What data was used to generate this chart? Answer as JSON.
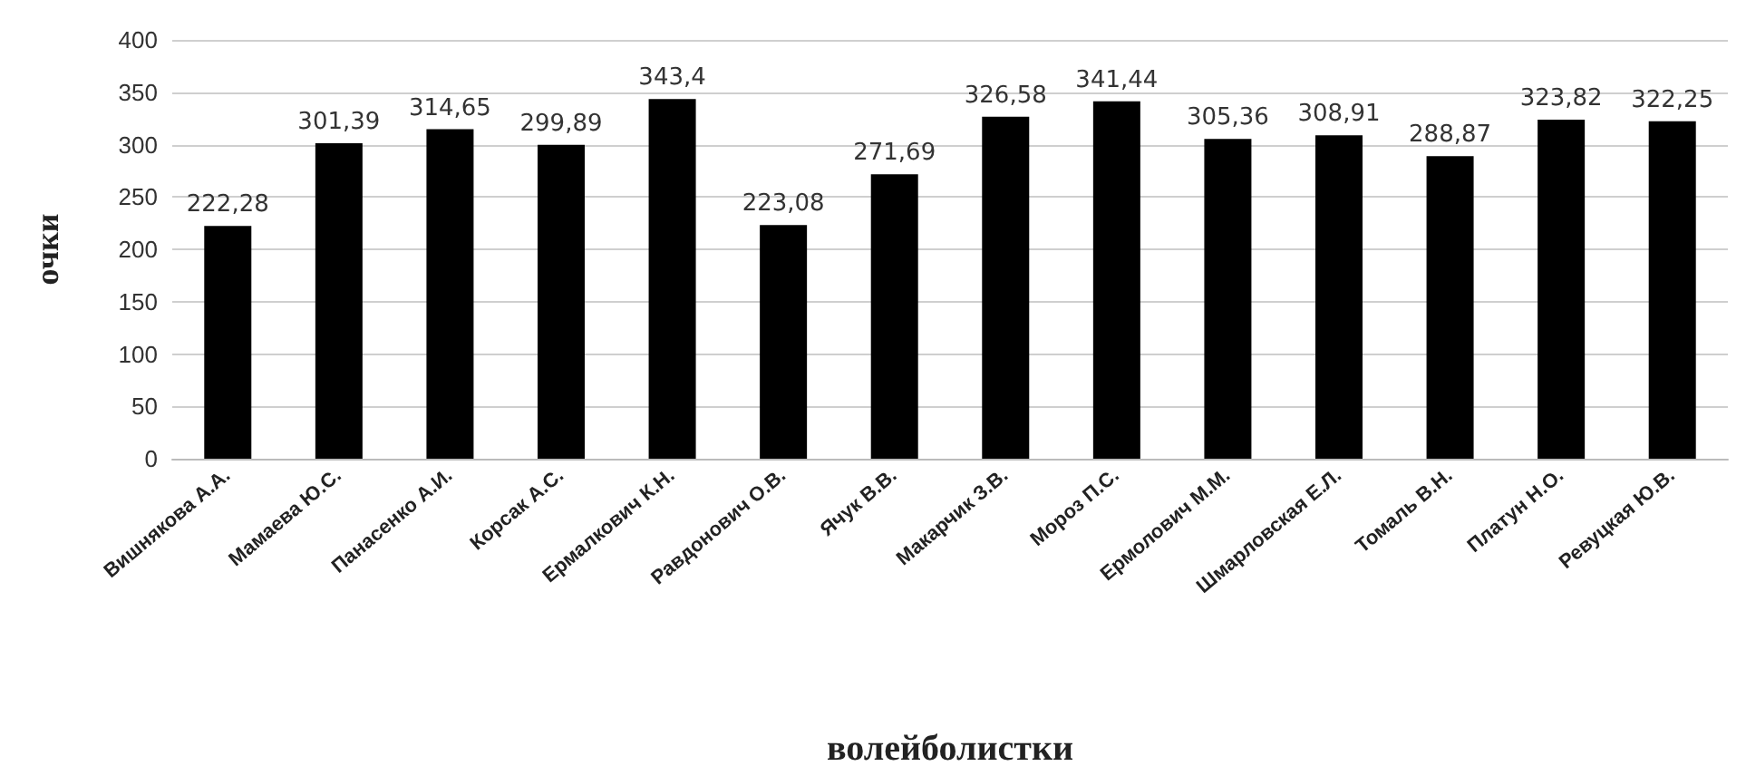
{
  "chart_data": {
    "type": "bar",
    "xlabel": "волейболистки",
    "ylabel": "очки",
    "categories": [
      "Вишнякова А.А.",
      "Мамаева Ю.С.",
      "Панасенко А.И.",
      "Корсак А.С.",
      "Ермалкович К.Н.",
      "Равдонович О.В.",
      "Ячук В.В.",
      "Макарчик З.В.",
      "Мороз П.С.",
      "Ермолович М.М.",
      "Шмарловская Е.Л.",
      "Томаль В.Н.",
      "Платун Н.О.",
      "Ревуцкая Ю.В."
    ],
    "values": [
      222.28,
      301.39,
      314.65,
      299.89,
      343.4,
      223.08,
      271.69,
      326.58,
      341.44,
      305.36,
      308.91,
      288.87,
      323.82,
      322.25
    ],
    "value_labels": [
      "222,28",
      "301,39",
      "314,65",
      "299,89",
      "343,4",
      "223,08",
      "271,69",
      "326,58",
      "341,44",
      "305,36",
      "308,91",
      "288,87",
      "323,82",
      "322,25"
    ],
    "color": "#000000",
    "ylim": [
      0,
      400
    ],
    "yticks": [
      0,
      50,
      100,
      150,
      200,
      250,
      300,
      350,
      400
    ],
    "grid": "y"
  }
}
